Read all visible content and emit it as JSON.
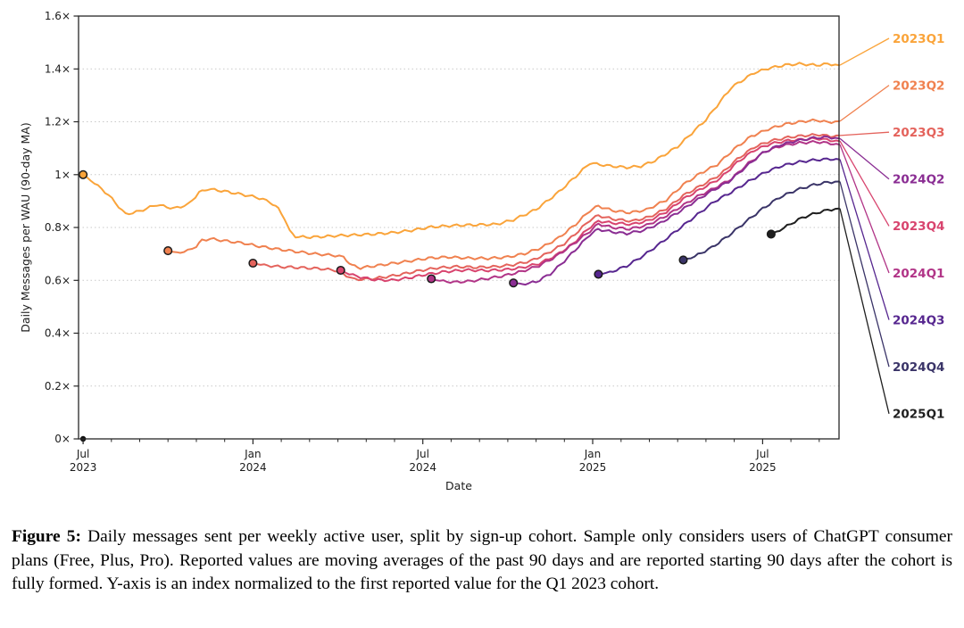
{
  "figure": {
    "caption_label": "Figure 5:",
    "caption_text": "Daily messages sent per weekly active user, split by sign-up cohort. Sample only considers users of ChatGPT consumer plans (Free, Plus, Pro). Reported values are moving averages of the past 90 days and are reported starting 90 days after the cohort is fully formed. Y-axis is an index normalized to the first reported value for the Q1 2023 cohort."
  },
  "chart_data": {
    "type": "line",
    "title": "",
    "xlabel": "Date",
    "ylabel": "Daily Messages per WAU (90-day MA)",
    "x_unit": "months since 2023-07-01",
    "xlim": [
      -0.16,
      26.7
    ],
    "ylim": [
      0,
      1.6
    ],
    "grid": "horizontal dotted",
    "grid_values": [
      0.2,
      0.4,
      0.6,
      0.8,
      1.0,
      1.2,
      1.4
    ],
    "y_ticks": [
      {
        "value": 0.0,
        "label": "0×"
      },
      {
        "value": 0.2,
        "label": "0.2×"
      },
      {
        "value": 0.4,
        "label": "0.4×"
      },
      {
        "value": 0.6,
        "label": "0.6×"
      },
      {
        "value": 0.8,
        "label": "0.8×"
      },
      {
        "value": 1.0,
        "label": "1×"
      },
      {
        "value": 1.2,
        "label": "1.2×"
      },
      {
        "value": 1.4,
        "label": "1.4×"
      },
      {
        "value": 1.6,
        "label": "1.6×"
      }
    ],
    "x_major_ticks": [
      {
        "m": 0,
        "line1": "Jul",
        "line2": "2023"
      },
      {
        "m": 6,
        "line1": "Jan",
        "line2": "2024"
      },
      {
        "m": 12,
        "line1": "Jul",
        "line2": "2024"
      },
      {
        "m": 18,
        "line1": "Jan",
        "line2": "2025"
      },
      {
        "m": 24,
        "line1": "Jul",
        "line2": "2025"
      }
    ],
    "x_minor_ticks_months": [
      1,
      2,
      3,
      4,
      5,
      7,
      8,
      9,
      10,
      11,
      13,
      14,
      15,
      16,
      17,
      19,
      20,
      21,
      22,
      23,
      25,
      26
    ],
    "wiggle": {
      "period_months": 0.45,
      "amplitude": 0.0045
    },
    "origin_marker": {
      "m": 0,
      "value": 0,
      "color": "#111111"
    },
    "legend_position": "right edge labels with colored leader lines",
    "right_labels": [
      "2023Q1",
      "2023Q2",
      "2023Q3",
      "2024Q2",
      "2023Q4",
      "2024Q1",
      "2024Q3",
      "2024Q4",
      "2025Q1"
    ],
    "series": [
      {
        "name": "2023Q1",
        "color": "#FAA43A",
        "points": [
          [
            0,
            1.0
          ],
          [
            0.4,
            0.968
          ],
          [
            0.9,
            0.923
          ],
          [
            1.5,
            0.85
          ],
          [
            2.0,
            0.862
          ],
          [
            2.6,
            0.886
          ],
          [
            3.2,
            0.872
          ],
          [
            3.7,
            0.886
          ],
          [
            4.1,
            0.932
          ],
          [
            4.4,
            0.946
          ],
          [
            5.0,
            0.937
          ],
          [
            5.6,
            0.925
          ],
          [
            6.1,
            0.915
          ],
          [
            6.6,
            0.897
          ],
          [
            6.9,
            0.87
          ],
          [
            7.1,
            0.838
          ],
          [
            7.3,
            0.785
          ],
          [
            7.5,
            0.766
          ],
          [
            7.9,
            0.763
          ],
          [
            8.4,
            0.765
          ],
          [
            9.0,
            0.769
          ],
          [
            9.7,
            0.772
          ],
          [
            10.3,
            0.775
          ],
          [
            11.0,
            0.781
          ],
          [
            11.6,
            0.789
          ],
          [
            12.3,
            0.802
          ],
          [
            13.2,
            0.808
          ],
          [
            13.9,
            0.81
          ],
          [
            14.6,
            0.812
          ],
          [
            15.2,
            0.829
          ],
          [
            16.0,
            0.868
          ],
          [
            16.8,
            0.934
          ],
          [
            17.4,
            0.993
          ],
          [
            17.9,
            1.044
          ],
          [
            18.5,
            1.034
          ],
          [
            19.2,
            1.027
          ],
          [
            19.7,
            1.032
          ],
          [
            20.2,
            1.053
          ],
          [
            21.0,
            1.106
          ],
          [
            22.0,
            1.208
          ],
          [
            22.9,
            1.33
          ],
          [
            23.7,
            1.385
          ],
          [
            24.2,
            1.402
          ],
          [
            24.8,
            1.415
          ],
          [
            25.3,
            1.419
          ],
          [
            25.9,
            1.414
          ],
          [
            26.3,
            1.419
          ],
          [
            26.7,
            1.414
          ]
        ]
      },
      {
        "name": "2023Q2",
        "color": "#F0814F",
        "points": [
          [
            3.0,
            0.712
          ],
          [
            3.3,
            0.704
          ],
          [
            3.7,
            0.712
          ],
          [
            4.0,
            0.729
          ],
          [
            4.2,
            0.751
          ],
          [
            4.5,
            0.757
          ],
          [
            5.1,
            0.748
          ],
          [
            5.7,
            0.74
          ],
          [
            6.1,
            0.731
          ],
          [
            6.8,
            0.719
          ],
          [
            7.5,
            0.709
          ],
          [
            8.2,
            0.7
          ],
          [
            8.9,
            0.694
          ],
          [
            9.2,
            0.688
          ],
          [
            9.5,
            0.656
          ],
          [
            9.8,
            0.647
          ],
          [
            10.4,
            0.656
          ],
          [
            11.0,
            0.665
          ],
          [
            11.6,
            0.674
          ],
          [
            12.2,
            0.684
          ],
          [
            12.9,
            0.688
          ],
          [
            13.6,
            0.684
          ],
          [
            14.3,
            0.683
          ],
          [
            15.0,
            0.688
          ],
          [
            15.6,
            0.701
          ],
          [
            16.2,
            0.724
          ],
          [
            16.8,
            0.761
          ],
          [
            17.4,
            0.812
          ],
          [
            17.9,
            0.864
          ],
          [
            18.2,
            0.881
          ],
          [
            18.7,
            0.864
          ],
          [
            19.3,
            0.856
          ],
          [
            19.9,
            0.867
          ],
          [
            20.6,
            0.904
          ],
          [
            21.2,
            0.962
          ],
          [
            21.8,
            1.005
          ],
          [
            22.4,
            1.038
          ],
          [
            23.0,
            1.097
          ],
          [
            23.6,
            1.145
          ],
          [
            24.2,
            1.172
          ],
          [
            24.8,
            1.191
          ],
          [
            25.4,
            1.201
          ],
          [
            25.9,
            1.206
          ],
          [
            26.3,
            1.198
          ],
          [
            26.7,
            1.202
          ]
        ]
      },
      {
        "name": "2023Q3",
        "color": "#E4635C",
        "points": [
          [
            6.0,
            0.665
          ],
          [
            6.4,
            0.657
          ],
          [
            7.0,
            0.651
          ],
          [
            7.7,
            0.648
          ],
          [
            8.4,
            0.644
          ],
          [
            8.9,
            0.638
          ],
          [
            9.3,
            0.618
          ],
          [
            9.6,
            0.603
          ],
          [
            10.1,
            0.605
          ],
          [
            10.7,
            0.613
          ],
          [
            11.3,
            0.624
          ],
          [
            11.9,
            0.637
          ],
          [
            12.5,
            0.647
          ],
          [
            13.2,
            0.652
          ],
          [
            13.9,
            0.649
          ],
          [
            14.6,
            0.652
          ],
          [
            15.2,
            0.659
          ],
          [
            15.8,
            0.673
          ],
          [
            16.4,
            0.702
          ],
          [
            17.0,
            0.739
          ],
          [
            17.5,
            0.787
          ],
          [
            17.9,
            0.828
          ],
          [
            18.2,
            0.845
          ],
          [
            18.7,
            0.832
          ],
          [
            19.4,
            0.824
          ],
          [
            20.0,
            0.84
          ],
          [
            20.6,
            0.871
          ],
          [
            21.2,
            0.921
          ],
          [
            21.9,
            0.963
          ],
          [
            22.5,
            1.0
          ],
          [
            23.1,
            1.058
          ],
          [
            23.7,
            1.104
          ],
          [
            24.3,
            1.128
          ],
          [
            24.9,
            1.141
          ],
          [
            25.5,
            1.148
          ],
          [
            26.0,
            1.151
          ],
          [
            26.4,
            1.145
          ],
          [
            26.7,
            1.148
          ]
        ]
      },
      {
        "name": "2023Q4",
        "color": "#D8446E",
        "points": [
          [
            9.1,
            0.638
          ],
          [
            9.4,
            0.624
          ],
          [
            9.8,
            0.612
          ],
          [
            10.3,
            0.602
          ],
          [
            10.9,
            0.6
          ],
          [
            11.5,
            0.609
          ],
          [
            12.1,
            0.622
          ],
          [
            12.8,
            0.633
          ],
          [
            13.5,
            0.639
          ],
          [
            14.2,
            0.637
          ],
          [
            14.9,
            0.64
          ],
          [
            15.5,
            0.648
          ],
          [
            16.1,
            0.663
          ],
          [
            16.7,
            0.694
          ],
          [
            17.3,
            0.738
          ],
          [
            17.8,
            0.792
          ],
          [
            18.2,
            0.824
          ],
          [
            18.7,
            0.817
          ],
          [
            19.4,
            0.812
          ],
          [
            20.0,
            0.827
          ],
          [
            20.6,
            0.859
          ],
          [
            21.2,
            0.908
          ],
          [
            21.9,
            0.95
          ],
          [
            22.5,
            0.986
          ],
          [
            23.1,
            1.046
          ],
          [
            23.7,
            1.092
          ],
          [
            24.3,
            1.117
          ],
          [
            24.9,
            1.129
          ],
          [
            25.5,
            1.134
          ],
          [
            26.0,
            1.136
          ],
          [
            26.4,
            1.13
          ],
          [
            26.7,
            1.127
          ]
        ]
      },
      {
        "name": "2024Q1",
        "color": "#B13487",
        "points": [
          [
            12.3,
            0.606
          ],
          [
            12.6,
            0.598
          ],
          [
            13.1,
            0.593
          ],
          [
            13.7,
            0.597
          ],
          [
            14.3,
            0.607
          ],
          [
            14.9,
            0.618
          ],
          [
            15.5,
            0.634
          ],
          [
            16.1,
            0.655
          ],
          [
            16.7,
            0.69
          ],
          [
            17.3,
            0.736
          ],
          [
            17.9,
            0.786
          ],
          [
            18.2,
            0.813
          ],
          [
            18.7,
            0.8
          ],
          [
            19.3,
            0.794
          ],
          [
            19.9,
            0.808
          ],
          [
            20.5,
            0.838
          ],
          [
            21.1,
            0.878
          ],
          [
            21.7,
            0.917
          ],
          [
            22.3,
            0.949
          ],
          [
            22.9,
            0.984
          ],
          [
            23.5,
            1.043
          ],
          [
            24.1,
            1.088
          ],
          [
            24.7,
            1.11
          ],
          [
            25.3,
            1.12
          ],
          [
            25.9,
            1.124
          ],
          [
            26.4,
            1.118
          ],
          [
            26.7,
            1.114
          ]
        ]
      },
      {
        "name": "2024Q2",
        "color": "#8A2D93",
        "points": [
          [
            15.2,
            0.59
          ],
          [
            15.5,
            0.585
          ],
          [
            16.0,
            0.594
          ],
          [
            16.5,
            0.624
          ],
          [
            17.0,
            0.673
          ],
          [
            17.5,
            0.728
          ],
          [
            17.9,
            0.773
          ],
          [
            18.2,
            0.793
          ],
          [
            18.7,
            0.783
          ],
          [
            19.2,
            0.777
          ],
          [
            19.8,
            0.789
          ],
          [
            20.4,
            0.817
          ],
          [
            21.0,
            0.856
          ],
          [
            21.6,
            0.898
          ],
          [
            22.2,
            0.938
          ],
          [
            22.8,
            0.973
          ],
          [
            23.4,
            1.028
          ],
          [
            24.0,
            1.082
          ],
          [
            24.6,
            1.112
          ],
          [
            25.2,
            1.128
          ],
          [
            25.8,
            1.139
          ],
          [
            26.3,
            1.142
          ],
          [
            26.7,
            1.137
          ]
        ]
      },
      {
        "name": "2024Q3",
        "color": "#56268F",
        "points": [
          [
            18.2,
            0.623
          ],
          [
            18.6,
            0.63
          ],
          [
            19.2,
            0.654
          ],
          [
            19.8,
            0.694
          ],
          [
            20.4,
            0.741
          ],
          [
            21.0,
            0.791
          ],
          [
            21.7,
            0.849
          ],
          [
            22.3,
            0.898
          ],
          [
            22.9,
            0.934
          ],
          [
            23.5,
            0.974
          ],
          [
            24.1,
            1.009
          ],
          [
            24.7,
            1.034
          ],
          [
            25.3,
            1.048
          ],
          [
            25.9,
            1.056
          ],
          [
            26.4,
            1.059
          ],
          [
            26.7,
            1.058
          ]
        ]
      },
      {
        "name": "2024Q4",
        "color": "#3A3468",
        "points": [
          [
            21.2,
            0.677
          ],
          [
            21.6,
            0.69
          ],
          [
            22.2,
            0.724
          ],
          [
            22.8,
            0.769
          ],
          [
            23.4,
            0.821
          ],
          [
            24.0,
            0.871
          ],
          [
            24.6,
            0.914
          ],
          [
            25.2,
            0.942
          ],
          [
            25.8,
            0.961
          ],
          [
            26.3,
            0.971
          ],
          [
            26.7,
            0.974
          ]
        ]
      },
      {
        "name": "2025Q1",
        "color": "#1F1F1F",
        "points": [
          [
            24.3,
            0.775
          ],
          [
            24.6,
            0.789
          ],
          [
            25.0,
            0.814
          ],
          [
            25.4,
            0.837
          ],
          [
            25.9,
            0.855
          ],
          [
            26.3,
            0.866
          ],
          [
            26.7,
            0.872
          ]
        ]
      }
    ]
  }
}
